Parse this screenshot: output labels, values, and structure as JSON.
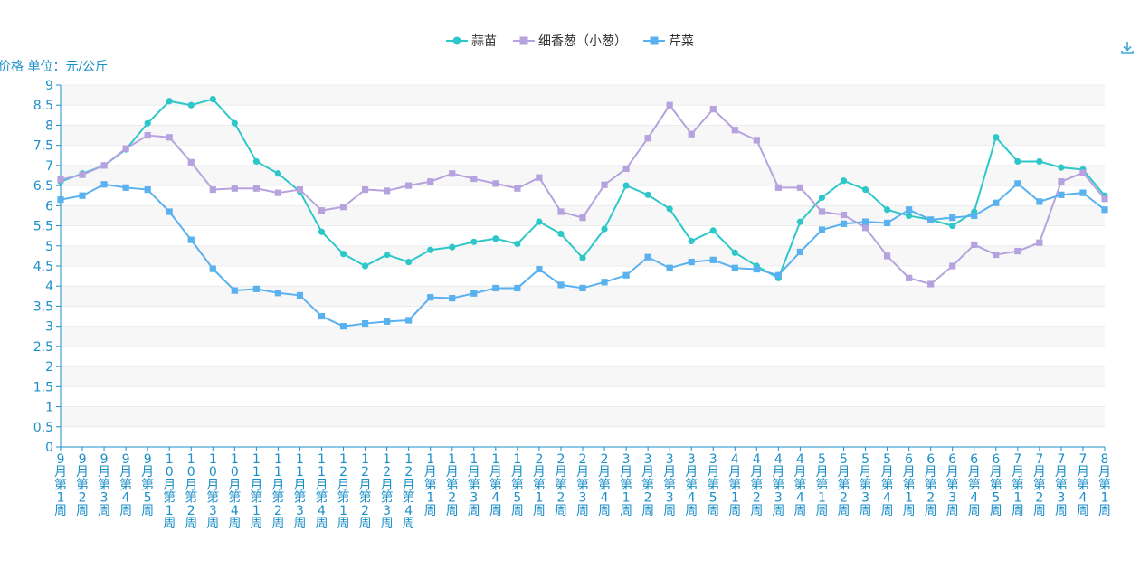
{
  "chart_data": {
    "type": "line",
    "ylabel": "价格 单位：元/公斤",
    "ylim": [
      0,
      9
    ],
    "ytick_step": 0.5,
    "grid": "horizontal bands",
    "legend_position": "top-center",
    "categories": [
      "9月第1周",
      "9月第2周",
      "9月第3周",
      "9月第4周",
      "9月第5周",
      "10月第1周",
      "10月第2周",
      "10月第3周",
      "10月第4周",
      "11月第1周",
      "11月第2周",
      "11月第3周",
      "11月第4周",
      "12月第1周",
      "12月第2周",
      "12月第3周",
      "12月第4周",
      "1月第1周",
      "1月第2周",
      "1月第3周",
      "1月第4周",
      "1月第5周",
      "2月第1周",
      "2月第2周",
      "2月第3周",
      "2月第4周",
      "3月第1周",
      "3月第2周",
      "3月第3周",
      "3月第4周",
      "3月第5周",
      "4月第1周",
      "4月第2周",
      "4月第3周",
      "4月第4周",
      "5月第1周",
      "5月第2周",
      "5月第3周",
      "5月第4周",
      "6月第1周",
      "6月第2周",
      "6月第3周",
      "6月第4周",
      "6月第5周",
      "7月第1周",
      "7月第2周",
      "7月第3周",
      "7月第4周",
      "8月第1周"
    ],
    "series": [
      {
        "name": "蒜苗",
        "color": "#2ec7c9",
        "marker": "circle",
        "values": [
          6.6,
          6.8,
          7.0,
          7.4,
          8.05,
          8.6,
          8.5,
          8.65,
          8.05,
          7.1,
          6.8,
          6.35,
          5.35,
          4.8,
          4.5,
          4.78,
          4.6,
          4.9,
          4.97,
          5.1,
          5.18,
          5.05,
          5.6,
          5.3,
          4.7,
          5.42,
          6.5,
          6.27,
          5.92,
          5.12,
          5.38,
          4.83,
          4.5,
          4.2,
          5.6,
          6.2,
          6.62,
          6.4,
          5.9,
          5.75,
          5.65,
          5.5,
          5.85,
          7.7,
          7.1,
          7.1,
          6.95,
          6.9,
          6.25
        ]
      },
      {
        "name": "细香葱（小葱）",
        "color": "#b6a2de",
        "marker": "square",
        "values": [
          6.65,
          6.77,
          7.0,
          7.42,
          7.75,
          7.7,
          7.08,
          6.4,
          6.43,
          6.43,
          6.32,
          6.4,
          5.88,
          5.97,
          6.4,
          6.37,
          6.5,
          6.6,
          6.8,
          6.67,
          6.55,
          6.43,
          6.7,
          5.85,
          5.7,
          6.52,
          6.92,
          7.68,
          8.5,
          7.78,
          8.4,
          7.88,
          7.63,
          6.45,
          6.45,
          5.85,
          5.77,
          5.45,
          4.75,
          4.2,
          4.05,
          4.5,
          5.03,
          4.78,
          4.87,
          5.08,
          6.6,
          6.82,
          6.17
        ]
      },
      {
        "name": "芹菜",
        "color": "#5ab1ef",
        "marker": "square",
        "values": [
          6.15,
          6.25,
          6.53,
          6.45,
          6.4,
          5.85,
          5.15,
          4.43,
          3.89,
          3.93,
          3.83,
          3.77,
          3.25,
          3.0,
          3.07,
          3.12,
          3.15,
          3.72,
          3.7,
          3.82,
          3.95,
          3.95,
          4.42,
          4.03,
          3.95,
          4.1,
          4.27,
          4.72,
          4.45,
          4.6,
          4.65,
          4.45,
          4.42,
          4.27,
          4.85,
          5.4,
          5.55,
          5.6,
          5.57,
          5.9,
          5.65,
          5.7,
          5.75,
          6.07,
          6.55,
          6.1,
          6.27,
          6.32,
          5.9
        ]
      }
    ]
  }
}
